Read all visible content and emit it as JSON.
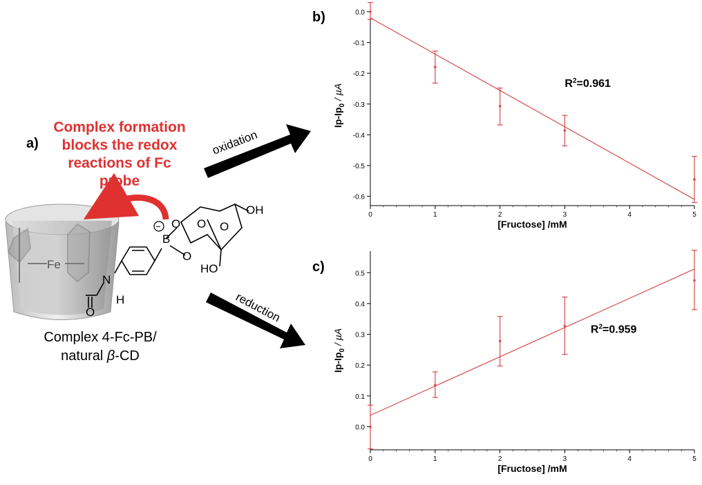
{
  "labels": {
    "a": "a)",
    "b": "b)",
    "c": "c)"
  },
  "caption": {
    "line1": "Complex formation",
    "line2": "blocks the redox",
    "line3": "reactions of Fc",
    "line4": "probe"
  },
  "complex_label": {
    "line1": "Complex 4-Fc-PB/",
    "line2_prefix": "natural ",
    "line2_beta": "β",
    "line2_suffix": "-CD"
  },
  "arrows": {
    "top": "oxidation",
    "bottom": "reduction"
  },
  "molecule": {
    "fe": "Fe",
    "oh": "OH",
    "ho": "HO",
    "n": "N",
    "h": "H",
    "o_carbonyl": "O",
    "b": "B",
    "o1": "O",
    "o2": "O",
    "o3": "O",
    "o4": "O",
    "minus": "−"
  },
  "colors": {
    "accent": "#e03131",
    "line": "#d94a4a",
    "arrow": "#000000"
  },
  "chart_data": [
    {
      "type": "scatter",
      "panel": "b)",
      "xlabel": "[Fructose] /mM",
      "ylabel": "Ip-Ip0 / µA",
      "ylabel_main": "Ip-Ip",
      "ylabel_sub": "0",
      "ylabel_unit": " / µA",
      "xlim": [
        0,
        5
      ],
      "ylim": [
        -0.63,
        0.02
      ],
      "xticks": [
        0,
        1,
        2,
        3,
        4,
        5
      ],
      "xtick_labels": [
        "0",
        "1",
        "2",
        "3",
        "4",
        "5"
      ],
      "yticks": [
        0.0,
        -0.1,
        -0.2,
        -0.3,
        -0.4,
        -0.5,
        -0.6
      ],
      "ytick_labels": [
        "0.0",
        "-0.1",
        "-0.2",
        "-0.3",
        "-0.4",
        "-0.5",
        "-0.6"
      ],
      "x": [
        0,
        1,
        2,
        3,
        5
      ],
      "y": [
        0.0,
        -0.18,
        -0.307,
        -0.386,
        -0.545
      ],
      "err_low": [
        -0.025,
        -0.232,
        -0.368,
        -0.436,
        -0.62
      ],
      "err_high": [
        0.03,
        -0.128,
        -0.248,
        -0.337,
        -0.47
      ],
      "fit": {
        "x": [
          0,
          5
        ],
        "y": [
          -0.02,
          -0.61
        ]
      },
      "annotation_main": "R",
      "annotation_sup": "2",
      "annotation_value": "=0.961",
      "annotation_pos": {
        "x": 3.0,
        "y": -0.245
      }
    },
    {
      "type": "scatter",
      "panel": "c)",
      "xlabel": "[Fructose] /mM",
      "ylabel": "Ip-Ip0 / µA",
      "ylabel_main": "Ip-Ip",
      "ylabel_sub": "0",
      "ylabel_unit": " / µA",
      "xlim": [
        0,
        5
      ],
      "ylim": [
        -0.075,
        0.57
      ],
      "xticks": [
        0,
        1,
        2,
        3,
        4,
        5
      ],
      "xtick_labels": [
        "0",
        "1",
        "2",
        "3",
        "4",
        "5"
      ],
      "yticks": [
        0.0,
        0.1,
        0.2,
        0.3,
        0.4,
        0.5
      ],
      "ytick_labels": [
        "0.0",
        "0.1",
        "0.2",
        "0.3",
        "0.4",
        "0.5"
      ],
      "x": [
        0,
        1,
        2,
        3,
        5
      ],
      "y": [
        0.0,
        0.135,
        0.278,
        0.327,
        0.475
      ],
      "err_low": [
        -0.072,
        0.095,
        0.197,
        0.235,
        0.38
      ],
      "err_high": [
        0.07,
        0.178,
        0.358,
        0.421,
        0.573
      ],
      "fit": {
        "x": [
          0,
          5
        ],
        "y": [
          0.037,
          0.512
        ]
      },
      "annotation_main": "R",
      "annotation_sup": "2",
      "annotation_value": "=0.959",
      "annotation_pos": {
        "x": 3.4,
        "y": 0.305
      }
    }
  ]
}
